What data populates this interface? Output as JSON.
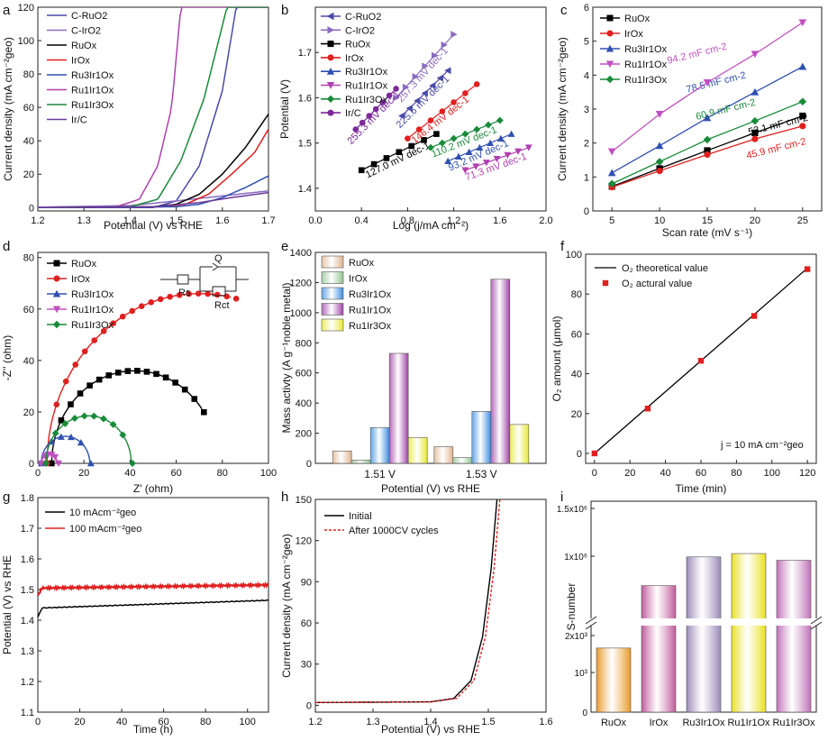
{
  "panels": {
    "a": {
      "label": "a",
      "type": "line",
      "xlabel": "Potential (V) vs RHE",
      "ylabel": "Current density (mA cm⁻²geo)",
      "xlim": [
        1.2,
        1.7
      ],
      "ylim": [
        -2,
        120
      ],
      "xticks": [
        "1.2",
        "1.3",
        "1.4",
        "1.5",
        "1.6",
        "1.7"
      ],
      "yticks": [
        "0",
        "20",
        "40",
        "60",
        "80",
        "100",
        "120"
      ],
      "series": [
        {
          "name": "C-RuO2",
          "color": "#4a4aa8",
          "onset": 1.43,
          "k": 0.0,
          "points": [
            [
              1.2,
              0
            ],
            [
              1.6,
              0.5
            ]
          ]
        },
        {
          "name": "C-IrO2",
          "color": "#8a6bbf",
          "points": [
            [
              1.2,
              0.3
            ],
            [
              1.4,
              1.2
            ],
            [
              1.5,
              4
            ],
            [
              1.6,
              7
            ],
            [
              1.7,
              10
            ]
          ]
        },
        {
          "name": "RuOx",
          "color": "#000000",
          "points": [
            [
              1.2,
              0
            ],
            [
              1.45,
              0.5
            ],
            [
              1.5,
              2
            ],
            [
              1.55,
              8
            ],
            [
              1.6,
              20
            ],
            [
              1.65,
              36
            ],
            [
              1.7,
              56
            ]
          ]
        },
        {
          "name": "IrOx",
          "color": "#e02020",
          "points": [
            [
              1.2,
              0
            ],
            [
              1.47,
              0.5
            ],
            [
              1.52,
              2
            ],
            [
              1.57,
              8
            ],
            [
              1.62,
              20
            ],
            [
              1.67,
              33
            ],
            [
              1.7,
              47
            ]
          ]
        },
        {
          "name": "Ru3Ir1Ox",
          "color": "#3050b0",
          "points": [
            [
              1.2,
              0
            ],
            [
              1.5,
              0.5
            ],
            [
              1.55,
              2
            ],
            [
              1.6,
              6
            ],
            [
              1.65,
              12
            ],
            [
              1.7,
              19
            ]
          ]
        },
        {
          "name": "Ru1Ir1Ox",
          "color": "#b040b0",
          "points": [
            [
              1.2,
              0
            ],
            [
              1.37,
              0.5
            ],
            [
              1.42,
              5
            ],
            [
              1.46,
              25
            ],
            [
              1.49,
              60
            ],
            [
              1.51,
              120
            ]
          ]
        },
        {
          "name": "Ru1Ir3Ox",
          "color": "#1a8a3a",
          "points": [
            [
              1.2,
              0
            ],
            [
              1.4,
              0.5
            ],
            [
              1.46,
              5
            ],
            [
              1.51,
              28
            ],
            [
              1.56,
              65
            ],
            [
              1.61,
              120
            ]
          ]
        },
        {
          "name": "Ir/C",
          "color": "#6a3a9a",
          "points": [
            [
              1.2,
              0
            ],
            [
              1.45,
              0.5
            ],
            [
              1.55,
              3
            ],
            [
              1.62,
              6
            ],
            [
              1.7,
              9
            ]
          ]
        },
        {
          "name": "C-RuO2 steep",
          "color": "#4a4aa8",
          "points": [
            [
              1.45,
              0
            ],
            [
              1.5,
              4
            ],
            [
              1.55,
              25
            ],
            [
              1.6,
              70
            ],
            [
              1.63,
              120
            ]
          ]
        }
      ]
    },
    "b": {
      "label": "b",
      "type": "line",
      "xlabel": "Log (j/mA cm⁻²)",
      "ylabel": "Potential (V)",
      "xlim": [
        0,
        2
      ],
      "ylim": [
        1.35,
        1.8
      ],
      "xticks": [
        "0.0",
        "0.4",
        "0.8",
        "1.2",
        "1.6",
        "2.0"
      ],
      "yticks": [
        "1.4",
        "1.5",
        "1.6",
        "1.7"
      ],
      "legend": [
        "C-RuO2",
        "C-IrO2",
        "RuOx",
        "IrOx",
        "Ru3Ir1Ox",
        "Ru1Ir1Ox",
        "Ru1Ir3Ox",
        "Ir/C"
      ],
      "series": [
        {
          "name": "C-RuO2",
          "color": "#4a4aa8",
          "marker": "tri-left",
          "points": [
            [
              0.75,
              1.56
            ],
            [
              1.15,
              1.66
            ]
          ],
          "annot": "225.6 mV dec-1"
        },
        {
          "name": "C-IrO2",
          "color": "#8a6bbf",
          "marker": "tri-right",
          "points": [
            [
              0.7,
              1.6
            ],
            [
              1.2,
              1.74
            ]
          ],
          "annot": "257.3 mV dec-1"
        },
        {
          "name": "RuOx",
          "color": "#000000",
          "marker": "square",
          "points": [
            [
              0.4,
              1.44
            ],
            [
              1.05,
              1.52
            ]
          ],
          "annot": "127.0 mV dec-1"
        },
        {
          "name": "IrOx",
          "color": "#e02020",
          "marker": "circle",
          "points": [
            [
              0.8,
              1.51
            ],
            [
              1.4,
              1.63
            ]
          ],
          "annot": "146.4 mV dec-1"
        },
        {
          "name": "Ru3Ir1Ox",
          "color": "#3050b0",
          "marker": "tri-up",
          "points": [
            [
              1.15,
              1.46
            ],
            [
              1.7,
              1.52
            ]
          ],
          "annot": "93.2 mV dec-1"
        },
        {
          "name": "Ru1Ir1Ox",
          "color": "#b040b0",
          "marker": "tri-down",
          "points": [
            [
              1.3,
              1.44
            ],
            [
              1.85,
              1.49
            ]
          ],
          "annot": "71.3 mV dec-1"
        },
        {
          "name": "Ru1Ir3Ox",
          "color": "#1a8a3a",
          "marker": "diamond",
          "points": [
            [
              1.0,
              1.49
            ],
            [
              1.6,
              1.55
            ]
          ],
          "annot": "110.2 mV dec-1"
        },
        {
          "name": "Ir/C",
          "color": "#7a2a9a",
          "marker": "circle",
          "points": [
            [
              0.35,
              1.53
            ],
            [
              0.7,
              1.62
            ]
          ],
          "annot": "255.3 mV dec-1"
        }
      ]
    },
    "c": {
      "label": "c",
      "type": "line",
      "xlabel": "Scan rate (mV s⁻¹)",
      "ylabel": "Current density (mA cm⁻²geo)",
      "xlim": [
        3,
        27
      ],
      "ylim": [
        0,
        6
      ],
      "xticks": [
        "5",
        "10",
        "15",
        "20",
        "25"
      ],
      "yticks": [
        "0",
        "1",
        "2",
        "3",
        "4",
        "5",
        "6"
      ],
      "x": [
        5,
        10,
        15,
        20,
        25
      ],
      "series": [
        {
          "name": "RuOx",
          "color": "#000000",
          "marker": "square",
          "values": [
            0.72,
            1.25,
            1.78,
            2.3,
            2.8
          ],
          "annot": "53.1 mF cm-2"
        },
        {
          "name": "IrOx",
          "color": "#e02020",
          "marker": "circle",
          "values": [
            0.7,
            1.18,
            1.66,
            2.12,
            2.5
          ],
          "annot": "45.9 mF cm-2"
        },
        {
          "name": "Ru3Ir1Ox",
          "color": "#3050b0",
          "marker": "tri-up",
          "values": [
            1.12,
            1.92,
            2.74,
            3.5,
            4.25
          ],
          "annot": "78.5 mF cm-2"
        },
        {
          "name": "Ru1Ir1Ox",
          "color": "#c050c0",
          "marker": "tri-down",
          "values": [
            1.75,
            2.85,
            3.78,
            4.62,
            5.55
          ],
          "annot": "94.2 mF cm-2"
        },
        {
          "name": "Ru1Ir3Ox",
          "color": "#1a8a3a",
          "marker": "diamond",
          "values": [
            0.8,
            1.45,
            2.1,
            2.65,
            3.22
          ],
          "annot": "60.9 mF cm-2"
        }
      ]
    },
    "d": {
      "label": "d",
      "type": "scatter",
      "xlabel": "Z' (ohm)",
      "ylabel": "-Z'' (ohm)",
      "xlim": [
        0,
        100
      ],
      "ylim": [
        0,
        82
      ],
      "xticks": [
        "0",
        "20",
        "40",
        "60",
        "80",
        "100"
      ],
      "yticks": [
        "0",
        "20",
        "40",
        "60",
        "80"
      ],
      "series": [
        {
          "name": "RuOx",
          "color": "#000000",
          "marker": "square",
          "center": 42,
          "radius": 36,
          "xmax": 72
        },
        {
          "name": "IrOx",
          "color": "#e02020",
          "marker": "circle",
          "center": 70,
          "radius": 66,
          "xmax": 86
        },
        {
          "name": "Ru3Ir1Ox",
          "color": "#3050b0",
          "marker": "tri-up",
          "center": 12,
          "radius": 10.5,
          "xmax": 23
        },
        {
          "name": "Ru1Ir1Ox",
          "color": "#c050c0",
          "marker": "tri-down",
          "center": 5,
          "radius": 3.5,
          "xmax": 9
        },
        {
          "name": "Ru1Ir3Ox",
          "color": "#1a8a3a",
          "marker": "diamond",
          "center": 22,
          "radius": 18.5,
          "xmax": 41
        }
      ],
      "circuit": {
        "q": "Q",
        "rs": "Rs",
        "rct": "Rct"
      }
    },
    "e": {
      "label": "e",
      "type": "bar",
      "xlabel": "Potential (V) vs RHE",
      "ylabel": "Mass activty (A g⁻¹noble metal)",
      "ylim": [
        0,
        1400
      ],
      "yticks": [
        "0",
        "200",
        "400",
        "600",
        "800",
        "1000",
        "1200",
        "1400"
      ],
      "categories": [
        "1.51 V",
        "1.53 V"
      ],
      "series": [
        {
          "name": "RuOx",
          "color": "#e0b48c",
          "values": [
            82,
            110
          ]
        },
        {
          "name": "IrOx",
          "color": "#8fc48f",
          "values": [
            22,
            38
          ]
        },
        {
          "name": "Ru3Ir1Ox",
          "color": "#3a8de0",
          "values": [
            238,
            345
          ]
        },
        {
          "name": "Ru1Ir1Ox",
          "color": "#a040a8",
          "values": [
            730,
            1222
          ]
        },
        {
          "name": "Ru1Ir3Ox",
          "color": "#e8e830",
          "values": [
            172,
            258
          ]
        }
      ]
    },
    "f": {
      "label": "f",
      "type": "line",
      "xlabel": "Time (min)",
      "ylabel": "O₂ amount (μmol)",
      "xlim": [
        -5,
        125
      ],
      "ylim": [
        -5,
        100
      ],
      "xticks": [
        "0",
        "20",
        "40",
        "60",
        "80",
        "100",
        "120"
      ],
      "yticks": [
        "0",
        "20",
        "40",
        "60",
        "80",
        "100"
      ],
      "theoretical": {
        "name": "O₂ theoretical value",
        "points": [
          [
            0,
            0
          ],
          [
            120,
            93
          ]
        ]
      },
      "actual": {
        "name": "O₂ actural value",
        "x": [
          0,
          30,
          60,
          90,
          120
        ],
        "values": [
          0,
          22.5,
          46.5,
          69,
          92.5
        ]
      },
      "annot": "j = 10 mA cm⁻²geo"
    },
    "g": {
      "label": "g",
      "type": "line",
      "xlabel": "Time (h)",
      "ylabel": "Potential (V) vs RHE",
      "xlim": [
        0,
        110
      ],
      "ylim": [
        1.1,
        1.8
      ],
      "xticks": [
        "0",
        "20",
        "40",
        "60",
        "80",
        "100"
      ],
      "yticks": [
        "1.1",
        "1.2",
        "1.3",
        "1.4",
        "1.5",
        "1.6",
        "1.7",
        "1.8"
      ],
      "series": [
        {
          "name": "10 mAcm⁻²geo",
          "color": "#000000",
          "start": 1.41,
          "plateau": 1.44,
          "end": 1.465
        },
        {
          "name": "100 mAcm⁻²geo",
          "color": "#e02020",
          "start": 1.48,
          "plateau": 1.505,
          "end": 1.515
        }
      ]
    },
    "h": {
      "label": "h",
      "type": "line",
      "xlabel": "Potential (V) vs RHE",
      "ylabel": "Current density (mA cm⁻²geo)",
      "xlim": [
        1.2,
        1.6
      ],
      "ylim": [
        -5,
        150
      ],
      "xticks": [
        "1.2",
        "1.3",
        "1.4",
        "1.5",
        "1.6"
      ],
      "yticks": [
        "0",
        "30",
        "60",
        "90",
        "120",
        "150"
      ],
      "series": [
        {
          "name": "Initial",
          "color": "#000000",
          "dash": false,
          "points": [
            [
              1.2,
              2
            ],
            [
              1.4,
              2.5
            ],
            [
              1.44,
              5
            ],
            [
              1.47,
              18
            ],
            [
              1.49,
              50
            ],
            [
              1.505,
              100
            ],
            [
              1.515,
              150
            ]
          ]
        },
        {
          "name": "After 1000CV cycles",
          "color": "#e02020",
          "dash": true,
          "points": [
            [
              1.2,
              2
            ],
            [
              1.4,
              2.5
            ],
            [
              1.445,
              5
            ],
            [
              1.475,
              18
            ],
            [
              1.495,
              50
            ],
            [
              1.51,
              100
            ],
            [
              1.52,
              150
            ]
          ]
        }
      ]
    },
    "i": {
      "label": "i",
      "type": "bar",
      "ylabel": "S-number",
      "categories": [
        "RuOx",
        "IrOx",
        "Ru3Ir1Ox",
        "Ru1Ir1Ox",
        "Ru1Ir3Ox"
      ],
      "heights": [
        0.38,
        0.75,
        0.92,
        0.94,
        0.9
      ],
      "colors": [
        "#e89a2a",
        "#c05a9a",
        "#9a8ab8",
        "#e8e020",
        "#c070b8"
      ],
      "yticks": [
        "1.5x10⁶",
        "1x10⁶",
        "2x10³",
        "10³",
        "0"
      ]
    }
  }
}
